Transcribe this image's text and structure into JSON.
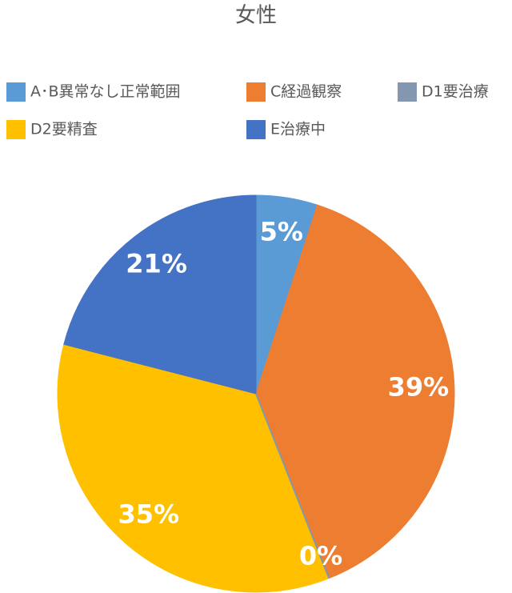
{
  "chart_data": {
    "type": "pie",
    "title": "女性",
    "categories": [
      "A･B異常なし正常範囲",
      "C経過観察",
      "D1要治療",
      "D2要精査",
      "E治療中"
    ],
    "values": [
      5,
      39,
      0,
      35,
      21
    ],
    "value_labels": [
      "5%",
      "39%",
      "0%",
      "35%",
      "21%"
    ],
    "colors": [
      "#5b9bd5",
      "#ed7d31",
      "#8497b0",
      "#ffc000",
      "#4472c4"
    ],
    "legend": "top"
  }
}
